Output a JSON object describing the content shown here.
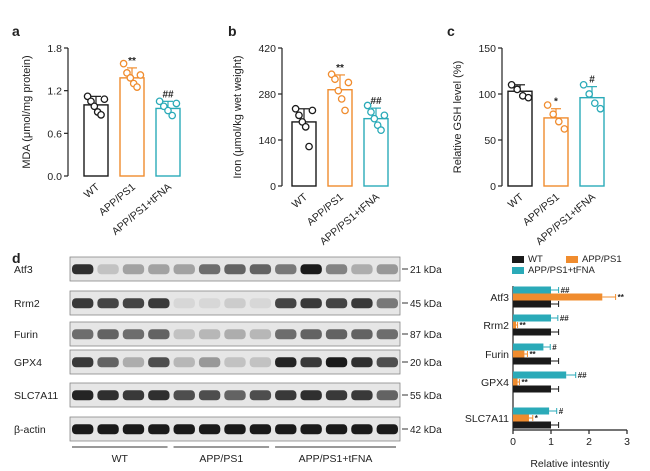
{
  "panels": {
    "a": "a",
    "b": "b",
    "c": "c",
    "d": "d"
  },
  "colors": {
    "wt": "#1a1a1a",
    "app": "#f08c2e",
    "tfna": "#2aaab8"
  },
  "chart_data": [
    {
      "panel": "a",
      "type": "bar",
      "categories": [
        "WT",
        "APP/PS1",
        "APP/PS1+tFNA"
      ],
      "values": [
        1.0,
        1.38,
        0.95
      ],
      "errors": [
        0.12,
        0.14,
        0.1
      ],
      "points": [
        [
          1.12,
          1.05,
          0.98,
          0.9,
          0.86,
          1.08
        ],
        [
          1.58,
          1.45,
          1.38,
          1.3,
          1.25,
          1.42
        ],
        [
          1.05,
          0.98,
          0.92,
          0.85,
          1.02
        ]
      ],
      "annotations": [
        "",
        "**",
        "##"
      ],
      "ylabel": "MDA (μmol/mg protein)",
      "ylim": [
        0,
        1.8
      ],
      "yticks": [
        "0.0",
        "0.6",
        "1.2",
        "1.8"
      ]
    },
    {
      "panel": "b",
      "type": "bar",
      "categories": [
        "WT",
        "APP/PS1",
        "APP/PS1+tFNA"
      ],
      "values": [
        195,
        293,
        205
      ],
      "errors": [
        40,
        45,
        32
      ],
      "points": [
        [
          235,
          215,
          195,
          180,
          120,
          230
        ],
        [
          340,
          325,
          290,
          265,
          230,
          315
        ],
        [
          245,
          225,
          205,
          185,
          170,
          215
        ]
      ],
      "annotations": [
        "",
        "**",
        "##"
      ],
      "ylabel": "Iron (μmol/kg wet weight)",
      "ylim": [
        0,
        420
      ],
      "yticks": [
        "0",
        "140",
        "280",
        "420"
      ]
    },
    {
      "panel": "c",
      "type": "bar",
      "categories": [
        "WT",
        "APP/PS1",
        "APP/PS1+tFNA"
      ],
      "values": [
        103,
        74,
        96
      ],
      "errors": [
        7,
        10,
        12
      ],
      "points": [
        [
          110,
          105,
          98,
          96
        ],
        [
          88,
          78,
          70,
          62
        ],
        [
          110,
          100,
          90,
          84
        ]
      ],
      "annotations": [
        "",
        "*",
        "#"
      ],
      "ylabel": "Relative GSH level (%)",
      "ylim": [
        0,
        150
      ],
      "yticks": [
        "0",
        "50",
        "100",
        "150"
      ]
    },
    {
      "panel": "d",
      "type": "bar",
      "orientation": "horizontal",
      "categories": [
        "Atf3",
        "Rrm2",
        "Furin",
        "GPX4",
        "SLC7A11"
      ],
      "series": [
        {
          "name": "WT",
          "values": [
            1.0,
            1.0,
            1.0,
            1.0,
            1.0
          ],
          "errors": [
            0.2,
            0.2,
            0.2,
            0.2,
            0.2
          ],
          "annotations": [
            "",
            "",
            "",
            "",
            ""
          ]
        },
        {
          "name": "APP/PS1",
          "values": [
            2.35,
            0.08,
            0.3,
            0.12,
            0.42
          ],
          "errors": [
            0.35,
            0.04,
            0.08,
            0.05,
            0.1
          ],
          "annotations": [
            "**",
            "**",
            "**",
            "**",
            "*"
          ]
        },
        {
          "name": "APP/PS1+tFNA",
          "values": [
            1.0,
            1.0,
            0.8,
            1.4,
            0.95
          ],
          "errors": [
            0.2,
            0.18,
            0.18,
            0.25,
            0.2
          ],
          "annotations": [
            "##",
            "##",
            "#",
            "##",
            "#"
          ]
        }
      ],
      "xlabel": "Relative intesntiy",
      "xlim": [
        0,
        3
      ],
      "xticks": [
        "0",
        "1",
        "2",
        "3"
      ]
    }
  ],
  "blot": {
    "rows": [
      {
        "label": "Atf3",
        "kda": "21 kDa"
      },
      {
        "label": "Rrm2",
        "kda": "45 kDa"
      },
      {
        "label": "Furin",
        "kda": "87 kDa"
      },
      {
        "label": "GPX4",
        "kda": "20 kDa"
      },
      {
        "label": "SLC7A11",
        "kda": "55 kDa"
      },
      {
        "label": "β-actin",
        "kda": "42 kDa"
      }
    ],
    "intensities": [
      [
        0.85,
        0.15,
        0.3,
        0.3,
        0.3,
        0.55,
        0.6,
        0.6,
        0.5,
        0.95,
        0.45,
        0.25,
        0.35
      ],
      [
        0.8,
        0.75,
        0.75,
        0.8,
        0.05,
        0.05,
        0.1,
        0.05,
        0.75,
        0.8,
        0.75,
        0.8,
        0.5
      ],
      [
        0.55,
        0.6,
        0.55,
        0.6,
        0.15,
        0.2,
        0.25,
        0.2,
        0.55,
        0.6,
        0.6,
        0.6,
        0.55
      ],
      [
        0.8,
        0.6,
        0.25,
        0.7,
        0.2,
        0.35,
        0.15,
        0.15,
        0.9,
        0.8,
        0.95,
        0.85,
        0.7
      ],
      [
        0.9,
        0.85,
        0.8,
        0.85,
        0.7,
        0.7,
        0.6,
        0.7,
        0.8,
        0.85,
        0.8,
        0.8,
        0.6
      ],
      [
        0.95,
        0.95,
        0.95,
        0.95,
        0.95,
        0.95,
        0.95,
        0.95,
        0.95,
        0.95,
        0.95,
        0.95,
        0.95
      ]
    ],
    "groups": [
      {
        "label": "WT",
        "lanes": 4
      },
      {
        "label": "APP/PS1",
        "lanes": 4
      },
      {
        "label": "APP/PS1+tFNA",
        "lanes": 5
      }
    ]
  }
}
